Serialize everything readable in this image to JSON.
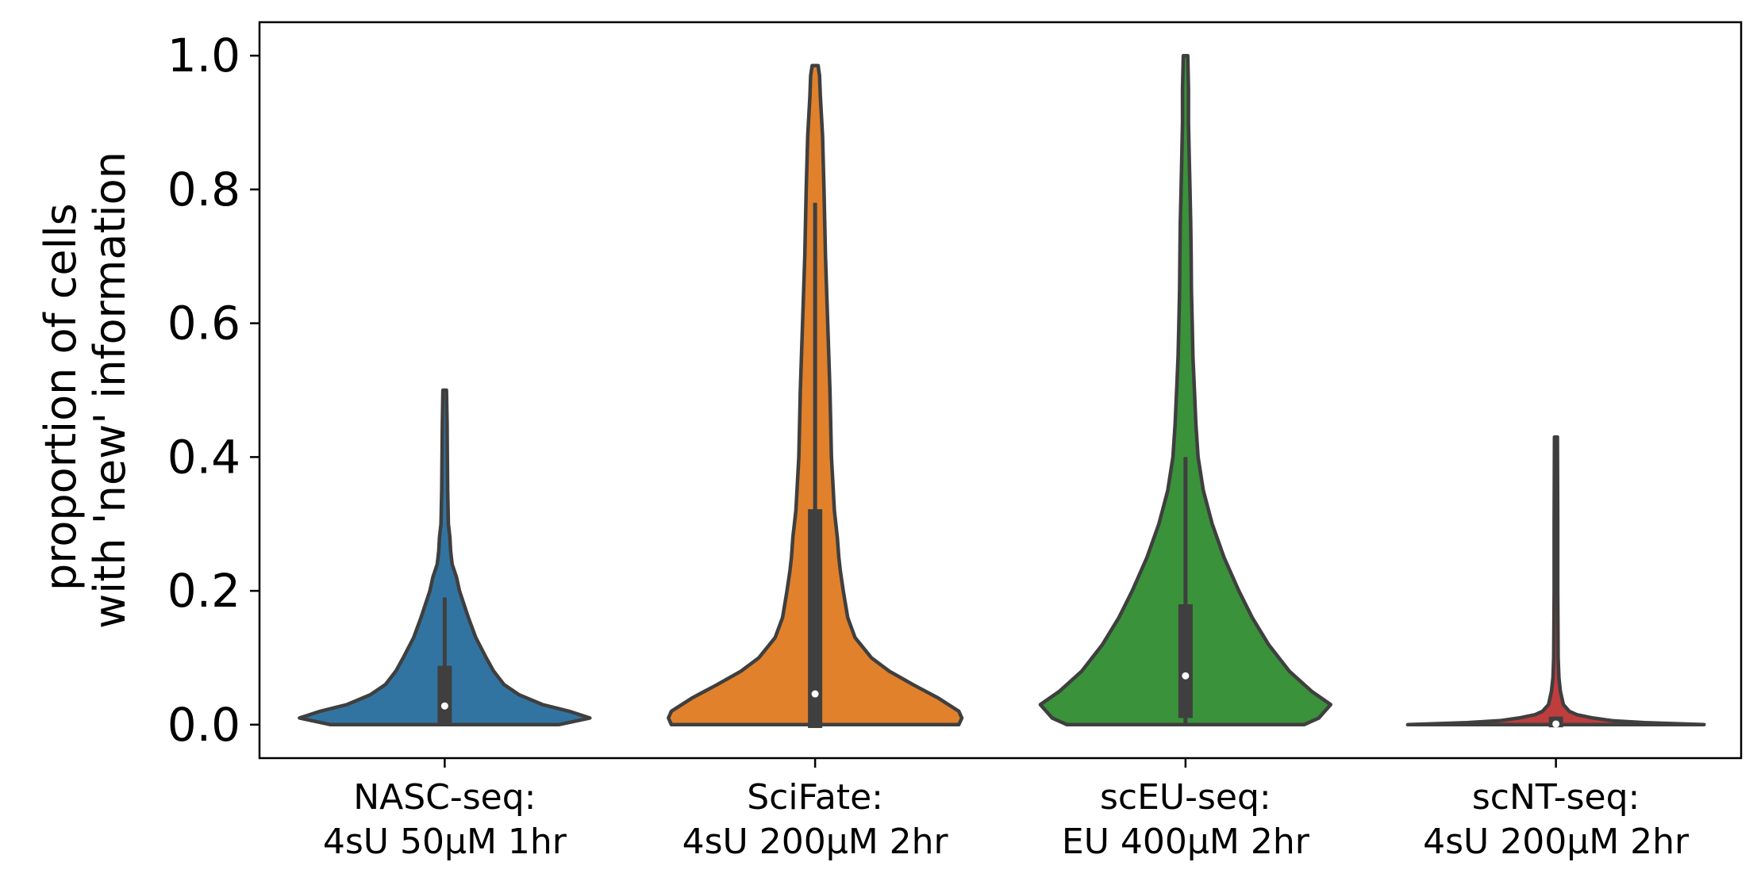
{
  "chart_data": {
    "type": "violin",
    "title": "",
    "xlabel": "",
    "ylabel": [
      "proportion of cells",
      "with 'new' information"
    ],
    "ylim": [
      -0.05,
      1.05
    ],
    "yticks": [
      0.0,
      0.2,
      0.4,
      0.6,
      0.8,
      1.0
    ],
    "ytick_labels": [
      "0.0",
      "0.2",
      "0.4",
      "0.6",
      "0.8",
      "1.0"
    ],
    "grid": false,
    "legend": "none",
    "categories": [
      [
        "NASC-seq:",
        "4sU 50µM 1hr"
      ],
      [
        "SciFate:",
        "4sU 200µM 2hr"
      ],
      [
        "scEU-seq:",
        "EU 400µM 2hr"
      ],
      [
        "scNT-seq:",
        "4sU 200µM 2hr"
      ]
    ],
    "series": [
      {
        "color": "#3274a1",
        "median": 0.028,
        "q1": 0.0,
        "q3": 0.088,
        "whisker_low": 0.0,
        "whisker_high": 0.19,
        "max": 0.5,
        "profile": [
          [
            0.0,
            0.77
          ],
          [
            0.01,
            0.98
          ],
          [
            0.02,
            0.84
          ],
          [
            0.03,
            0.66
          ],
          [
            0.045,
            0.5
          ],
          [
            0.06,
            0.4
          ],
          [
            0.08,
            0.33
          ],
          [
            0.1,
            0.28
          ],
          [
            0.13,
            0.21
          ],
          [
            0.16,
            0.16
          ],
          [
            0.2,
            0.1
          ],
          [
            0.22,
            0.08
          ],
          [
            0.24,
            0.05
          ],
          [
            0.26,
            0.04
          ],
          [
            0.28,
            0.035
          ],
          [
            0.3,
            0.025
          ],
          [
            0.35,
            0.02
          ],
          [
            0.4,
            0.018
          ],
          [
            0.45,
            0.016
          ],
          [
            0.5,
            0.012
          ]
        ]
      },
      {
        "color": "#e1812c",
        "median": 0.046,
        "q1": -0.005,
        "q3": 0.322,
        "whisker_low": -0.005,
        "whisker_high": 0.78,
        "max": 0.985,
        "profile": [
          [
            0.0,
            0.97
          ],
          [
            0.01,
            0.99
          ],
          [
            0.02,
            0.97
          ],
          [
            0.04,
            0.83
          ],
          [
            0.06,
            0.66
          ],
          [
            0.08,
            0.5
          ],
          [
            0.1,
            0.38
          ],
          [
            0.13,
            0.27
          ],
          [
            0.16,
            0.22
          ],
          [
            0.2,
            0.19
          ],
          [
            0.23,
            0.17
          ],
          [
            0.25,
            0.16
          ],
          [
            0.28,
            0.15
          ],
          [
            0.32,
            0.13
          ],
          [
            0.4,
            0.11
          ],
          [
            0.5,
            0.1
          ],
          [
            0.6,
            0.085
          ],
          [
            0.7,
            0.07
          ],
          [
            0.8,
            0.06
          ],
          [
            0.88,
            0.05
          ],
          [
            0.94,
            0.035
          ],
          [
            0.97,
            0.03
          ],
          [
            0.985,
            0.02
          ]
        ]
      },
      {
        "color": "#3a923a",
        "median": 0.073,
        "q1": 0.01,
        "q3": 0.18,
        "whisker_low": 0.0,
        "whisker_high": 0.4,
        "max": 1.0,
        "profile": [
          [
            0.0,
            0.8
          ],
          [
            0.01,
            0.9
          ],
          [
            0.03,
            0.98
          ],
          [
            0.05,
            0.85
          ],
          [
            0.08,
            0.7
          ],
          [
            0.12,
            0.56
          ],
          [
            0.16,
            0.45
          ],
          [
            0.2,
            0.36
          ],
          [
            0.25,
            0.26
          ],
          [
            0.3,
            0.18
          ],
          [
            0.35,
            0.12
          ],
          [
            0.4,
            0.085
          ],
          [
            0.45,
            0.07
          ],
          [
            0.5,
            0.06
          ],
          [
            0.55,
            0.05
          ],
          [
            0.6,
            0.045
          ],
          [
            0.65,
            0.04
          ],
          [
            0.7,
            0.038
          ],
          [
            0.75,
            0.035
          ],
          [
            0.8,
            0.03
          ],
          [
            0.85,
            0.025
          ],
          [
            0.9,
            0.02
          ],
          [
            0.95,
            0.02
          ],
          [
            1.0,
            0.015
          ]
        ]
      },
      {
        "color": "#c03d3e",
        "median": 0.001,
        "q1": -0.004,
        "q3": 0.012,
        "whisker_low": -0.004,
        "whisker_high": 0.012,
        "max": 0.43,
        "profile": [
          [
            0.0,
            1.0
          ],
          [
            0.003,
            0.6
          ],
          [
            0.006,
            0.38
          ],
          [
            0.01,
            0.25
          ],
          [
            0.015,
            0.14
          ],
          [
            0.02,
            0.09
          ],
          [
            0.03,
            0.05
          ],
          [
            0.05,
            0.03
          ],
          [
            0.07,
            0.02
          ],
          [
            0.1,
            0.015
          ],
          [
            0.2,
            0.012
          ],
          [
            0.3,
            0.012
          ],
          [
            0.43,
            0.01
          ]
        ]
      }
    ]
  }
}
